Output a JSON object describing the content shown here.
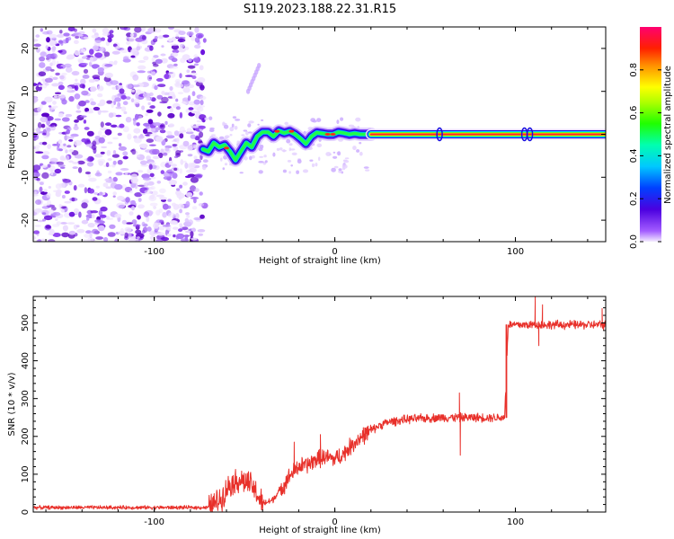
{
  "title": "S119.2023.188.22.31.R15",
  "colors": {
    "snr_line": "#e8302a",
    "axis": "#000000",
    "spectrum_core": "#ff1a3a",
    "spectrum_scatter": "#7a1fe0"
  },
  "chart_data": [
    {
      "type": "heatmap",
      "name": "spectrogram",
      "xlabel": "Height of straight line (km)",
      "ylabel": "Frequency (Hz)",
      "xlim": [
        -167,
        150
      ],
      "ylim": [
        -25,
        25
      ],
      "xticks": [
        -100,
        0,
        100
      ],
      "yticks": [
        -20,
        -10,
        0,
        10,
        20
      ],
      "colorbar": {
        "label": "Normalized spectral amplitude",
        "range": [
          0,
          1
        ],
        "ticks": [
          "0.0",
          "0.2",
          "0.4",
          "0.6",
          "0.8"
        ],
        "colormap": "rainbow (purple-blue-cyan-green-yellow-orange-red-magenta)"
      },
      "features": {
        "scatter_region_x": [
          -167,
          -74
        ],
        "fragment_region_x": [
          -74,
          20
        ],
        "carrier_line_x": [
          22,
          150
        ],
        "carrier_frequency_hz": 0,
        "faint_streak": {
          "x": [
            -48,
            -42
          ],
          "y": [
            10,
            16
          ]
        }
      },
      "carrier_trace": {
        "x": [
          -73,
          -70,
          -67,
          -64,
          -61,
          -58,
          -55,
          -52,
          -49,
          -46,
          -43,
          -40,
          -37,
          -34,
          -31,
          -28,
          -25,
          -22,
          -19,
          -16,
          -13,
          -10,
          -7,
          -4,
          -1,
          2,
          5,
          8,
          11,
          14,
          17,
          20
        ],
        "y": [
          -3.5,
          -4,
          -2,
          -3,
          -2.5,
          -4,
          -6,
          -4,
          -2,
          -3,
          -0.5,
          0.5,
          0.5,
          -0.5,
          0.8,
          0.3,
          0.7,
          0,
          -1,
          -2.2,
          -0.5,
          0.4,
          0.2,
          0,
          0,
          0.5,
          0.3,
          0,
          0.2,
          0,
          0,
          0
        ]
      }
    },
    {
      "type": "line",
      "name": "snr",
      "xlabel": "Height of straight line (km)",
      "ylabel": "SNR (10 * v/v)",
      "xlim": [
        -167,
        150
      ],
      "ylim": [
        0,
        570
      ],
      "xticks": [
        -100,
        0,
        100
      ],
      "yticks": [
        0,
        100,
        200,
        300,
        400,
        500
      ],
      "trend": {
        "x": [
          -167,
          -70,
          -63,
          -58,
          -52,
          -46,
          -40,
          -35,
          -30,
          -25,
          -20,
          -15,
          -10,
          -5,
          0,
          5,
          10,
          15,
          20,
          25,
          30,
          40,
          50,
          60,
          70,
          80,
          90,
          94,
          96,
          100,
          110,
          120,
          130,
          140,
          150
        ],
        "y": [
          12,
          12,
          35,
          75,
          85,
          70,
          22,
          30,
          60,
          95,
          120,
          125,
          140,
          145,
          140,
          155,
          180,
          200,
          215,
          230,
          238,
          245,
          248,
          250,
          250,
          250,
          250,
          250,
          495,
          495,
          495,
          495,
          495,
          495,
          495
        ]
      },
      "spikes": [
        {
          "x": -22.5,
          "y": 185
        },
        {
          "x": -8,
          "y": 205
        },
        {
          "x": 69,
          "y": 315
        },
        {
          "x": 69.5,
          "y": 150
        },
        {
          "x": 111,
          "y": 570
        },
        {
          "x": 113,
          "y": 440
        },
        {
          "x": 115,
          "y": 548
        },
        {
          "x": 148,
          "y": 538
        }
      ]
    }
  ]
}
